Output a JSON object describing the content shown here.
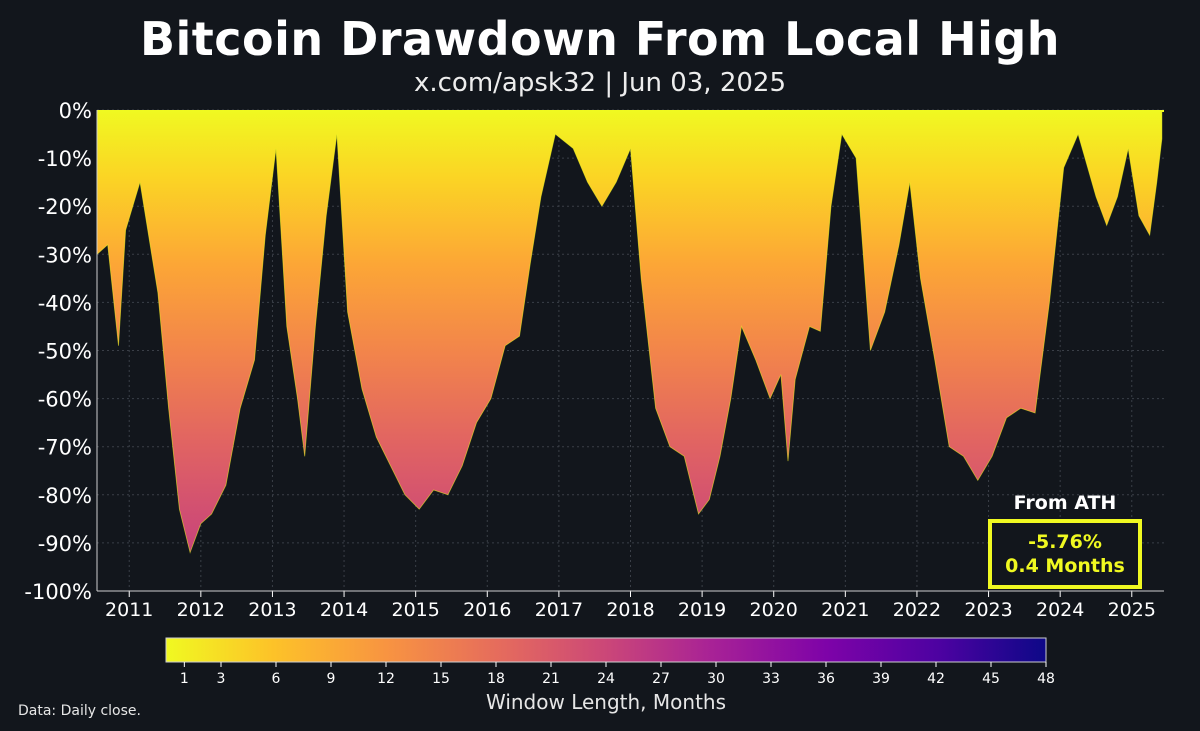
{
  "header": {
    "title": "Bitcoin Drawdown From Local High",
    "subtitle": "x.com/apsk32 | Jun 03, 2025"
  },
  "ath_box": {
    "heading": "From ATH",
    "drawdown": "-5.76%",
    "duration": "0.4 Months"
  },
  "colorbar": {
    "label": "Window Length, Months",
    "ticks": [
      "1",
      "3",
      "6",
      "9",
      "12",
      "15",
      "18",
      "21",
      "24",
      "27",
      "30",
      "33",
      "36",
      "39",
      "42",
      "45",
      "48"
    ],
    "range": [
      0,
      48
    ],
    "colormap": "plasma (reversed)"
  },
  "footnote": "Data: Daily close.",
  "chart_data": {
    "type": "area",
    "title": "Bitcoin Drawdown From Local High",
    "ylim": [
      -100,
      0
    ],
    "xlim": [
      2010.55,
      2025.45
    ],
    "y_ticks": [
      "0%",
      "-10%",
      "-20%",
      "-30%",
      "-40%",
      "-50%",
      "-60%",
      "-70%",
      "-80%",
      "-90%",
      "-100%"
    ],
    "x_ticks": [
      "2011",
      "2012",
      "2013",
      "2014",
      "2015",
      "2016",
      "2017",
      "2018",
      "2019",
      "2020",
      "2021",
      "2022",
      "2023",
      "2024",
      "2025"
    ],
    "grid": true,
    "series_note": "Filled drawdown (%) from rolling local high; colour = window length in months",
    "drawdown_envelope": [
      [
        2010.55,
        -30
      ],
      [
        2010.7,
        -28
      ],
      [
        2010.85,
        -49
      ],
      [
        2010.95,
        -25
      ],
      [
        2011.15,
        -15
      ],
      [
        2011.4,
        -38
      ],
      [
        2011.55,
        -62
      ],
      [
        2011.7,
        -83
      ],
      [
        2011.85,
        -92
      ],
      [
        2012.0,
        -86
      ],
      [
        2012.15,
        -84
      ],
      [
        2012.35,
        -78
      ],
      [
        2012.55,
        -62
      ],
      [
        2012.75,
        -52
      ],
      [
        2012.9,
        -26
      ],
      [
        2013.05,
        -8
      ],
      [
        2013.2,
        -45
      ],
      [
        2013.35,
        -60
      ],
      [
        2013.45,
        -72
      ],
      [
        2013.6,
        -45
      ],
      [
        2013.75,
        -22
      ],
      [
        2013.9,
        -5
      ],
      [
        2014.05,
        -42
      ],
      [
        2014.25,
        -58
      ],
      [
        2014.45,
        -68
      ],
      [
        2014.65,
        -74
      ],
      [
        2014.85,
        -80
      ],
      [
        2015.05,
        -83
      ],
      [
        2015.25,
        -79
      ],
      [
        2015.45,
        -80
      ],
      [
        2015.65,
        -74
      ],
      [
        2015.85,
        -65
      ],
      [
        2016.05,
        -60
      ],
      [
        2016.25,
        -49
      ],
      [
        2016.45,
        -47
      ],
      [
        2016.6,
        -32
      ],
      [
        2016.75,
        -18
      ],
      [
        2016.95,
        -5
      ],
      [
        2017.2,
        -8
      ],
      [
        2017.4,
        -15
      ],
      [
        2017.6,
        -20
      ],
      [
        2017.8,
        -15
      ],
      [
        2018.0,
        -8
      ],
      [
        2018.15,
        -35
      ],
      [
        2018.35,
        -62
      ],
      [
        2018.55,
        -70
      ],
      [
        2018.75,
        -72
      ],
      [
        2018.95,
        -84
      ],
      [
        2019.1,
        -81
      ],
      [
        2019.25,
        -72
      ],
      [
        2019.4,
        -60
      ],
      [
        2019.55,
        -45
      ],
      [
        2019.75,
        -52
      ],
      [
        2019.95,
        -60
      ],
      [
        2020.1,
        -55
      ],
      [
        2020.2,
        -73
      ],
      [
        2020.3,
        -56
      ],
      [
        2020.5,
        -45
      ],
      [
        2020.65,
        -46
      ],
      [
        2020.8,
        -20
      ],
      [
        2020.95,
        -5
      ],
      [
        2021.15,
        -10
      ],
      [
        2021.35,
        -50
      ],
      [
        2021.55,
        -42
      ],
      [
        2021.75,
        -28
      ],
      [
        2021.9,
        -15
      ],
      [
        2022.05,
        -35
      ],
      [
        2022.25,
        -52
      ],
      [
        2022.45,
        -70
      ],
      [
        2022.65,
        -72
      ],
      [
        2022.85,
        -77
      ],
      [
        2023.05,
        -72
      ],
      [
        2023.25,
        -64
      ],
      [
        2023.45,
        -62
      ],
      [
        2023.65,
        -63
      ],
      [
        2023.85,
        -40
      ],
      [
        2024.05,
        -12
      ],
      [
        2024.25,
        -5
      ],
      [
        2024.5,
        -18
      ],
      [
        2024.65,
        -24
      ],
      [
        2024.8,
        -18
      ],
      [
        2024.95,
        -8
      ],
      [
        2025.1,
        -22
      ],
      [
        2025.25,
        -26
      ],
      [
        2025.35,
        -15
      ],
      [
        2025.42,
        -6
      ]
    ]
  }
}
